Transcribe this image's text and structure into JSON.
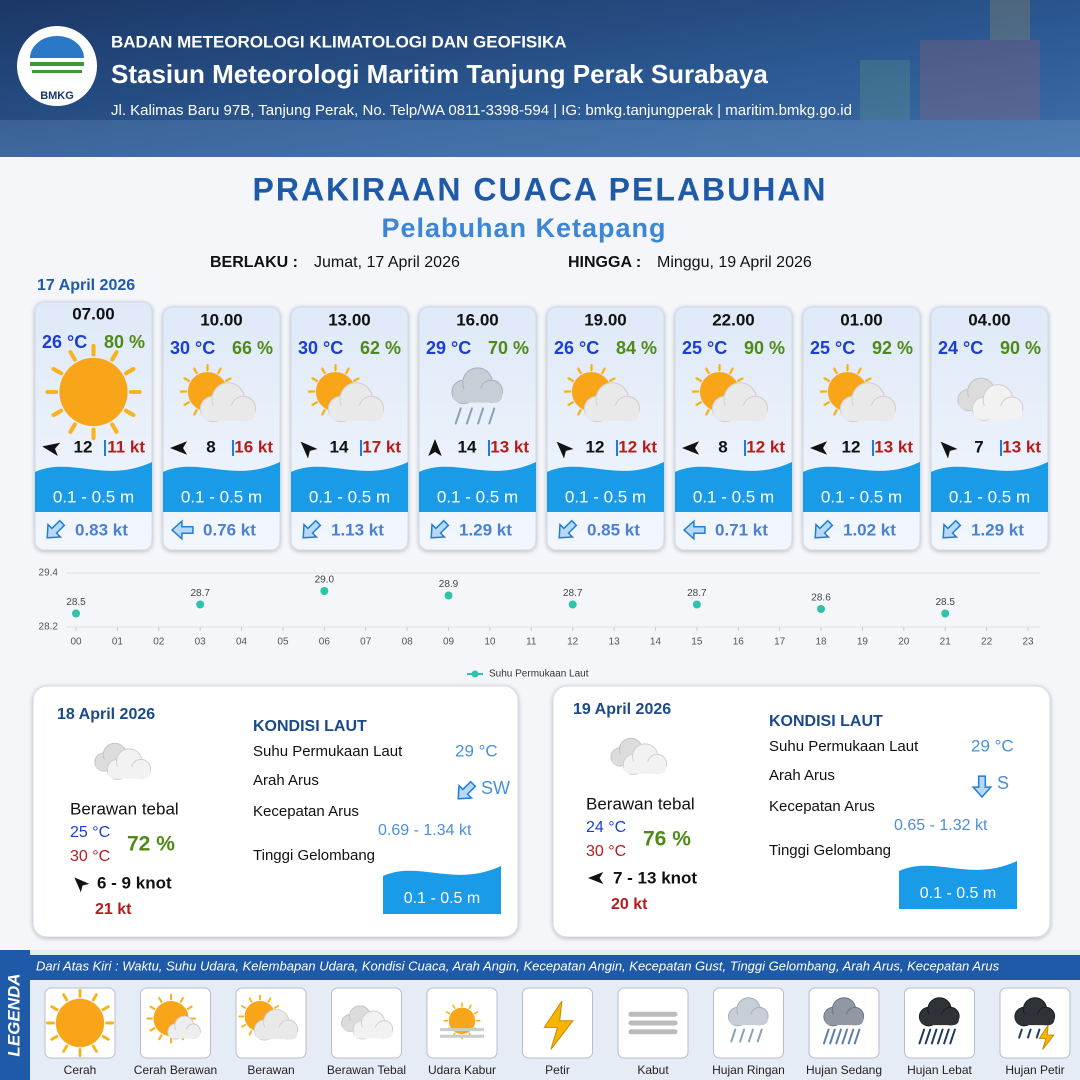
{
  "header": {
    "logo_text": "BMKG",
    "org": "BADAN METEOROLOGI KLIMATOLOGI DAN GEOFISIKA",
    "station": "Stasiun Meteorologi Maritim Tanjung Perak Surabaya",
    "address": "Jl. Kalimas Baru 97B, Tanjung Perak, No. Telp/WA 0811-3398-594 | IG: bmkg.tanjungperak | maritim.bmkg.go.id"
  },
  "title": "PRAKIRAAN CUACA PELABUHAN",
  "subtitle": "Pelabuhan Ketapang",
  "valid_label": "BERLAKU :",
  "valid_from": "Jumat, 17 April 2026",
  "until_label": "HINGGA :",
  "valid_until": "Minggu, 19 April 2026",
  "day1_date": "17 April 2026",
  "forecasts": [
    {
      "time": "07.00",
      "temp": "26 °C",
      "humidity": "80 %",
      "icon": "Cerah",
      "wind_dir": 280,
      "wind": "12",
      "gust": "11 kt",
      "wave": "0.1 - 0.5 m",
      "current_dir": 225,
      "current": "0.83 kt"
    },
    {
      "time": "10.00",
      "temp": "30 °C",
      "humidity": "66 %",
      "icon": "Berawan",
      "wind_dir": 270,
      "wind": "8",
      "gust": "16 kt",
      "wave": "0.1 - 0.5 m",
      "current_dir": 270,
      "current": "0.76 kt"
    },
    {
      "time": "13.00",
      "temp": "30 °C",
      "humidity": "62 %",
      "icon": "Berawan",
      "wind_dir": 315,
      "wind": "14",
      "gust": "17 kt",
      "wave": "0.1 - 0.5 m",
      "current_dir": 225,
      "current": "1.13 kt"
    },
    {
      "time": "16.00",
      "temp": "29 °C",
      "humidity": "70 %",
      "icon": "Hujan Ringan",
      "wind_dir": 0,
      "wind": "14",
      "gust": "13 kt",
      "wave": "0.1 - 0.5 m",
      "current_dir": 225,
      "current": "1.29 kt"
    },
    {
      "time": "19.00",
      "temp": "26 °C",
      "humidity": "84 %",
      "icon": "Berawan",
      "wind_dir": 315,
      "wind": "12",
      "gust": "12 kt",
      "wave": "0.1 - 0.5 m",
      "current_dir": 225,
      "current": "0.85 kt"
    },
    {
      "time": "22.00",
      "temp": "25 °C",
      "humidity": "90 %",
      "icon": "Berawan",
      "wind_dir": 270,
      "wind": "8",
      "gust": "12 kt",
      "wave": "0.1 - 0.5 m",
      "current_dir": 270,
      "current": "0.71 kt"
    },
    {
      "time": "01.00",
      "temp": "25 °C",
      "humidity": "92 %",
      "icon": "Berawan",
      "wind_dir": 270,
      "wind": "12",
      "gust": "13 kt",
      "wave": "0.1 - 0.5 m",
      "current_dir": 225,
      "current": "1.02 kt"
    },
    {
      "time": "04.00",
      "temp": "24 °C",
      "humidity": "90 %",
      "icon": "Berawan Tebal",
      "wind_dir": 315,
      "wind": "7",
      "gust": "13 kt",
      "wave": "0.1 - 0.5 m",
      "current_dir": 225,
      "current": "1.29 kt"
    }
  ],
  "chart_data": {
    "type": "scatter",
    "x": [
      0,
      3,
      6,
      9,
      12,
      15,
      18,
      21
    ],
    "series": [
      {
        "name": "Suhu Permukaan Laut",
        "color": "#2ec4a9",
        "values": [
          28.5,
          28.7,
          29.0,
          28.9,
          28.7,
          28.7,
          28.6,
          28.5
        ],
        "value_labels": [
          "28.5",
          "28.7",
          "29.0",
          "28.9",
          "28.7",
          "28.7",
          "28.6",
          "28.5"
        ]
      }
    ],
    "xlim": [
      0,
      23
    ],
    "xticks": [
      {
        "value": 0,
        "label": "00"
      },
      {
        "value": 1,
        "label": "01"
      },
      {
        "value": 2,
        "label": "02"
      },
      {
        "value": 3,
        "label": "03"
      },
      {
        "value": 4,
        "label": "04"
      },
      {
        "value": 5,
        "label": "05"
      },
      {
        "value": 6,
        "label": "06"
      },
      {
        "value": 7,
        "label": "07"
      },
      {
        "value": 8,
        "label": "08"
      },
      {
        "value": 9,
        "label": "09"
      },
      10,
      11,
      12,
      13,
      14,
      15,
      16,
      17,
      18,
      19,
      20,
      21,
      22,
      23
    ],
    "ylim": [
      28.2,
      29.4
    ],
    "yticks": [
      28.2,
      29.4
    ],
    "grid": true
  },
  "days": [
    {
      "date": "18 April 2026",
      "icon": "Berawan Tebal",
      "condition": "Berawan tebal",
      "temp_min": "25 °C",
      "temp_max": "30 °C",
      "humidity": "72 %",
      "wind_dir": 315,
      "wind": "6 - 9 knot",
      "gust": "21 kt",
      "sea_heading": "KONDISI LAUT",
      "sst_label": "Suhu Permukaan Laut",
      "sst": "29 °C",
      "current_dir_label": "Arah Arus",
      "current_dir_deg": 225,
      "current_dir": "SW",
      "current_speed_label": "Kecepatan Arus",
      "current_speed": "0.69 - 1.34 kt",
      "wave_label": "Tinggi Gelombang",
      "wave": "0.1 - 0.5 m"
    },
    {
      "date": "19 April 2026",
      "icon": "Berawan Tebal",
      "condition": "Berawan tebal",
      "temp_min": "24 °C",
      "temp_max": "30 °C",
      "humidity": "76 %",
      "wind_dir": 270,
      "wind": "7 - 13 knot",
      "gust": "20 kt",
      "sea_heading": "KONDISI LAUT",
      "sst_label": "Suhu Permukaan Laut",
      "sst": "29 °C",
      "current_dir_label": "Arah Arus",
      "current_dir_deg": 180,
      "current_dir": "S",
      "current_speed_label": "Kecepatan Arus",
      "current_speed": "0.65 - 1.32 kt",
      "wave_label": "Tinggi Gelombang",
      "wave": "0.1 - 0.5 m"
    }
  ],
  "legend": {
    "title": "LEGENDA",
    "description": "Dari Atas Kiri : Waktu, Suhu Udara, Kelembapan Udara, Kondisi Cuaca, Arah Angin, Kecepatan Angin, Kecepatan Gust, Tinggi Gelombang, Arah Arus, Kecepatan Arus",
    "items": [
      "Cerah",
      "Cerah Berawan",
      "Berawan",
      "Berawan Tebal",
      "Udara Kabur",
      "Petir",
      "Kabut",
      "Hujan Ringan",
      "Hujan Sedang",
      "Hujan Lebat",
      "Hujan Petir"
    ]
  }
}
